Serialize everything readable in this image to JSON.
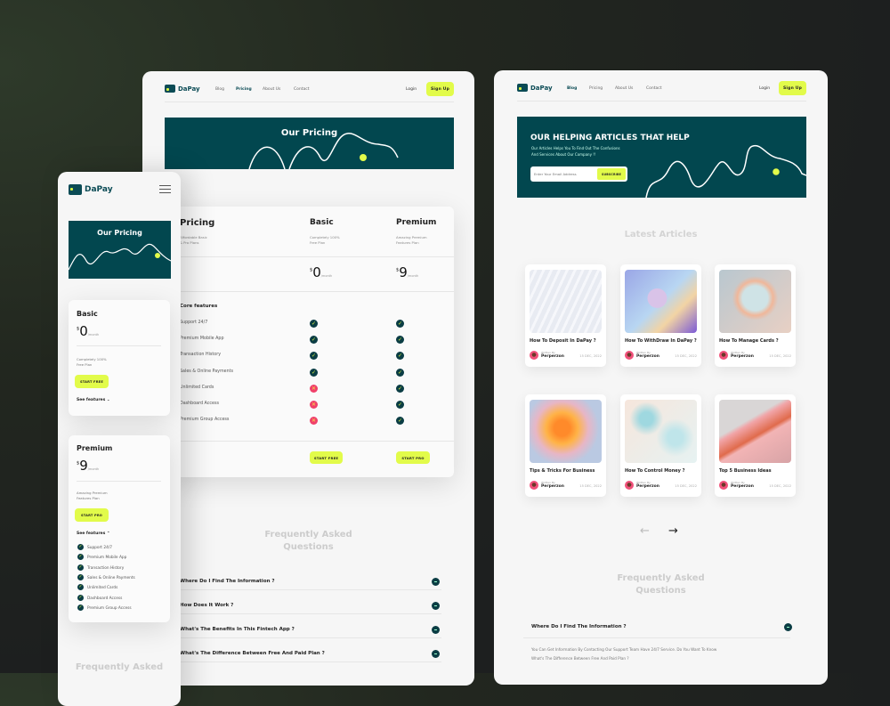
{
  "brand": {
    "name": "DaPay",
    "accent": "#e2fb4a",
    "primary": "#02474f"
  },
  "nav": {
    "blog": "Blog",
    "pricing": "Pricing",
    "about": "About Us",
    "contact": "Contact",
    "login": "Login",
    "signup": "Sign Up"
  },
  "pricing_page": {
    "hero_title": "Our Pricing",
    "table": {
      "heading": "Pricing",
      "heading_sub": [
        "Affordable Basic",
        "& Pro Plans"
      ],
      "plans": [
        {
          "name": "Basic",
          "sub": [
            "Completely 100%",
            "Free Plan"
          ],
          "currency": "$",
          "price": "0",
          "period": "/month",
          "cta": "START FREE"
        },
        {
          "name": "Premium",
          "sub": [
            "Amazing Premium",
            "Features Plan"
          ],
          "currency": "$",
          "price": "9",
          "period": "/month",
          "cta": "START PRO"
        }
      ],
      "section": "Core features",
      "features": [
        {
          "name": "Support 24/7",
          "basic": true,
          "premium": true
        },
        {
          "name": "Premium Mobile App",
          "basic": true,
          "premium": true
        },
        {
          "name": "Transaction History",
          "basic": true,
          "premium": true
        },
        {
          "name": "Sales & Online Payments",
          "basic": true,
          "premium": true
        },
        {
          "name": "Unlimited Cards",
          "basic": false,
          "premium": true
        },
        {
          "name": "Dashboard Access",
          "basic": false,
          "premium": true
        },
        {
          "name": "Premium Group Access",
          "basic": false,
          "premium": true
        }
      ]
    },
    "faq_title": [
      "Frequently Asked",
      "Questions"
    ],
    "faq": [
      "Where Do I Find The Information ?",
      "How Does It Work ?",
      "What's The Benefits In This Fintech App ?",
      "What's The Difference Between Free And Paid Plan ?"
    ]
  },
  "blog_page": {
    "hero_title": "OUR HELPING ARTICLES THAT HELP",
    "hero_sub": [
      "Our Articles Helps You To Find Out The Confusions",
      "And Services About Our Company !!"
    ],
    "email_placeholder": "Enter Your Email Address",
    "subscribe": "SUBSCRIBE",
    "latest": "Latest Articles",
    "articles": [
      {
        "title": "How To Deposit In DaPay ?",
        "written_by": "Written By",
        "author": "Perperzon",
        "date": "15 DEC, 2022"
      },
      {
        "title": "How To WithDraw In DaPay ?",
        "written_by": "Written By",
        "author": "Perperzon",
        "date": "15 DEC, 2022"
      },
      {
        "title": "How To Manage Cards ?",
        "written_by": "Written By",
        "author": "Perperzon",
        "date": "15 DEC, 2022"
      },
      {
        "title": "Tips & Tricks For Business",
        "written_by": "Written By",
        "author": "Perperzon",
        "date": "15 DEC, 2022"
      },
      {
        "title": "How To Control Money ?",
        "written_by": "Written By",
        "author": "Perperzon",
        "date": "15 DEC, 2022"
      },
      {
        "title": "Top 5 Business Ideas",
        "written_by": "Written By",
        "author": "Perperzon",
        "date": "15 DEC, 2022"
      }
    ],
    "prev": "←",
    "next": "→",
    "faq_title": [
      "Frequently Asked",
      "Questions"
    ],
    "faq_q": "Where Do I Find The Information ?",
    "faq_a": [
      "You Can Get Information By Contacting Our Support Team Have 24/7 Service. Do You Want To Know",
      "What's The Difference Between Free And Paid Plan ?"
    ]
  },
  "mobile": {
    "hero_title": "Our Pricing",
    "see_features": "See features",
    "faq_title": "Frequently Asked"
  }
}
